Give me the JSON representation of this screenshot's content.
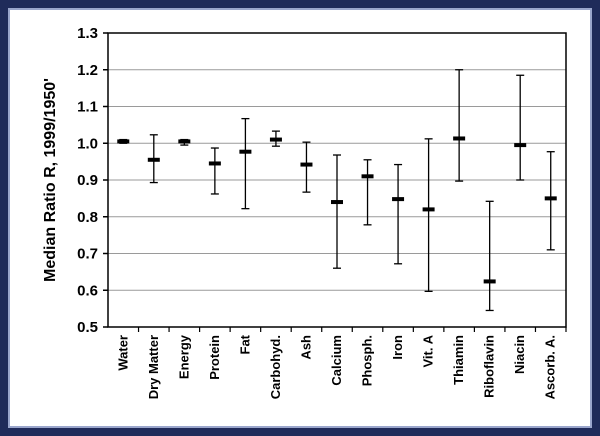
{
  "chart_data": {
    "type": "errorbar",
    "title": "",
    "xlabel": "",
    "ylabel": "Median Ratio R, 1999/1950'",
    "ylim": [
      0.5,
      1.3
    ],
    "yticks": [
      "0.5",
      "0.6",
      "0.7",
      "0.8",
      "0.9",
      "1.0",
      "1.1",
      "1.2",
      "1.3"
    ],
    "grid": "horizontal",
    "categories": [
      "Water",
      "Dry Matter",
      "Energy",
      "Protein",
      "Fat",
      "Carbohyd.",
      "Ash",
      "Calcium",
      "Phosph.",
      "Iron",
      "Vit. A",
      "Thiamin",
      "Riboflavin",
      "Niacin",
      "Ascorb. A."
    ],
    "median": [
      1.005,
      0.955,
      1.005,
      0.945,
      0.977,
      1.01,
      0.942,
      0.84,
      0.91,
      0.848,
      0.82,
      1.013,
      0.624,
      0.995,
      0.85
    ],
    "low": [
      1.0,
      0.893,
      0.995,
      0.862,
      0.822,
      0.992,
      0.867,
      0.66,
      0.778,
      0.672,
      0.597,
      0.897,
      0.545,
      0.9,
      0.71
    ],
    "high": [
      1.01,
      1.023,
      1.01,
      0.987,
      1.067,
      1.033,
      1.003,
      0.968,
      0.955,
      0.942,
      1.012,
      1.2,
      0.842,
      1.185,
      0.977
    ]
  }
}
